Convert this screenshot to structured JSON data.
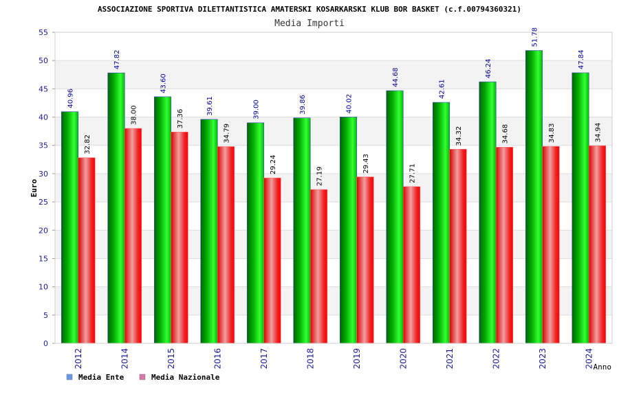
{
  "chart_data": {
    "type": "bar",
    "title": "ASSOCIAZIONE SPORTIVA DILETTANTISTICA AMATERSKI KOSARKARSKI KLUB BOR BASKET (c.f.00794360321)",
    "subtitle": "Media Importi",
    "xlabel": "Anno",
    "ylabel": "Euro",
    "ylim": [
      0,
      55
    ],
    "yticks": [
      0,
      5,
      10,
      15,
      20,
      25,
      30,
      35,
      40,
      45,
      50,
      55
    ],
    "grid": true,
    "legend_position": "bottom-left",
    "categories": [
      "2012",
      "2014",
      "2015",
      "2016",
      "2017",
      "2018",
      "2019",
      "2020",
      "2021",
      "2022",
      "2023",
      "2024"
    ],
    "series": [
      {
        "name": "Media Ente",
        "legend_color": "#6699ee",
        "bar_color": "#00cc00",
        "label_color": "#000099",
        "values": [
          40.96,
          47.82,
          43.6,
          39.61,
          39.0,
          39.86,
          40.02,
          44.68,
          42.61,
          46.24,
          51.78,
          47.84
        ],
        "labels": [
          "40.96",
          "47.82",
          "43.60",
          "39.61",
          "39.00",
          "39.86",
          "40.02",
          "44.68",
          "42.61",
          "46.24",
          "51.78",
          "47.84"
        ]
      },
      {
        "name": "Media Nazionale",
        "legend_color": "#dd77aa",
        "bar_color": "#ff0000",
        "label_color": "#000000",
        "values": [
          32.82,
          38.0,
          37.36,
          34.79,
          29.24,
          27.19,
          29.43,
          27.71,
          34.32,
          34.68,
          34.83,
          34.94
        ],
        "labels": [
          "32.82",
          "38.00",
          "37.36",
          "34.79",
          "29.24",
          "27.19",
          "29.43",
          "27.71",
          "34.32",
          "34.68",
          "34.83",
          "34.94"
        ]
      }
    ]
  }
}
